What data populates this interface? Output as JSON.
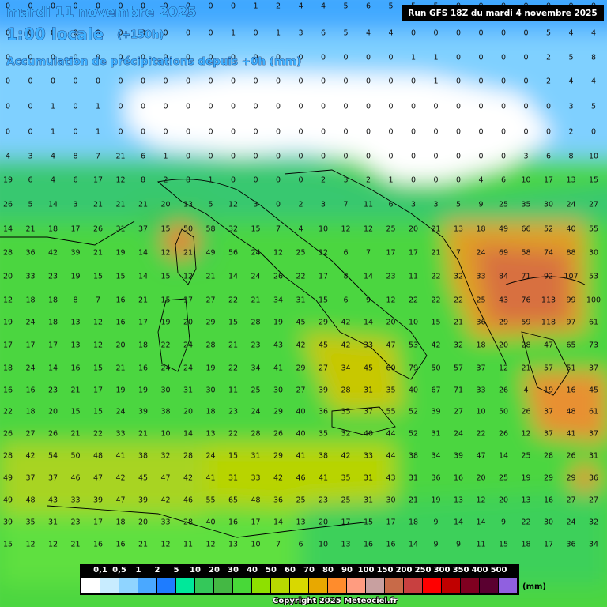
{
  "header": {
    "date": "mardi 11 novembre 2025",
    "time": "1:00 locale",
    "lead": "(+150h)",
    "subtitle": "Accumulation de précipitations depuis +0h (mm)",
    "run": "Run GFS 18Z du mardi 4 novembre 2025"
  },
  "grid": [
    [
      0,
      0,
      0,
      0,
      0,
      0,
      0,
      0,
      0,
      0,
      0,
      1,
      2,
      4,
      4,
      5,
      6,
      5,
      5,
      5,
      0,
      0,
      0,
      0,
      0,
      0,
      0
    ],
    [
      0,
      0,
      0,
      0,
      0,
      0,
      0,
      0,
      0,
      0,
      1,
      0,
      1,
      3,
      6,
      5,
      4,
      4,
      0,
      0,
      0,
      0,
      0,
      0,
      5,
      4,
      4
    ],
    [
      0,
      0,
      0,
      0,
      0,
      0,
      0,
      0,
      0,
      0,
      0,
      0,
      0,
      0,
      0,
      0,
      0,
      0,
      1,
      1,
      0,
      0,
      0,
      0,
      2,
      5,
      8
    ],
    [
      0,
      0,
      0,
      0,
      0,
      0,
      0,
      0,
      0,
      0,
      0,
      0,
      0,
      0,
      0,
      0,
      0,
      0,
      0,
      1,
      0,
      0,
      0,
      0,
      2,
      4,
      4
    ],
    [
      0,
      0,
      1,
      0,
      1,
      0,
      0,
      0,
      0,
      0,
      0,
      0,
      0,
      0,
      0,
      0,
      0,
      0,
      0,
      0,
      0,
      0,
      0,
      0,
      0,
      3,
      5
    ],
    [
      0,
      0,
      1,
      0,
      1,
      0,
      0,
      0,
      0,
      0,
      0,
      0,
      0,
      0,
      0,
      0,
      0,
      0,
      0,
      0,
      0,
      0,
      0,
      0,
      0,
      2,
      0
    ],
    [
      4,
      3,
      4,
      8,
      7,
      21,
      6,
      1,
      0,
      0,
      0,
      0,
      0,
      0,
      0,
      0,
      0,
      0,
      0,
      0,
      0,
      0,
      0,
      3,
      6,
      8,
      10
    ],
    [
      19,
      6,
      4,
      6,
      17,
      12,
      8,
      2,
      8,
      1,
      0,
      0,
      0,
      0,
      2,
      3,
      2,
      1,
      0,
      0,
      0,
      4,
      6,
      10,
      17,
      13,
      15
    ],
    [
      26,
      5,
      14,
      3,
      21,
      21,
      21,
      20,
      13,
      5,
      12,
      3,
      0,
      2,
      3,
      7,
      11,
      6,
      3,
      3,
      5,
      9,
      25,
      35,
      30,
      24,
      27
    ],
    [
      14,
      21,
      18,
      17,
      26,
      31,
      37,
      15,
      50,
      58,
      32,
      15,
      7,
      4,
      10,
      12,
      12,
      25,
      20,
      21,
      13,
      18,
      49,
      66,
      52,
      40,
      55
    ],
    [
      28,
      36,
      42,
      39,
      21,
      19,
      14,
      12,
      21,
      49,
      56,
      24,
      12,
      25,
      12,
      6,
      7,
      17,
      17,
      21,
      7,
      24,
      69,
      58,
      74,
      88,
      30
    ],
    [
      20,
      33,
      23,
      19,
      15,
      15,
      14,
      15,
      12,
      21,
      14,
      24,
      26,
      22,
      17,
      8,
      14,
      23,
      11,
      22,
      32,
      33,
      84,
      71,
      92,
      107,
      53
    ],
    [
      12,
      18,
      18,
      8,
      7,
      16,
      21,
      15,
      17,
      27,
      22,
      21,
      34,
      31,
      15,
      6,
      9,
      12,
      22,
      22,
      22,
      25,
      43,
      76,
      113,
      99,
      100
    ],
    [
      19,
      24,
      18,
      13,
      12,
      16,
      17,
      19,
      20,
      29,
      15,
      28,
      19,
      45,
      29,
      42,
      14,
      20,
      10,
      15,
      21,
      36,
      29,
      59,
      118,
      97,
      61
    ],
    [
      17,
      17,
      17,
      13,
      12,
      20,
      18,
      22,
      24,
      28,
      21,
      23,
      43,
      42,
      45,
      42,
      33,
      47,
      53,
      42,
      32,
      18,
      20,
      28,
      47,
      65,
      73
    ],
    [
      18,
      24,
      14,
      16,
      15,
      21,
      16,
      24,
      24,
      19,
      22,
      34,
      41,
      29,
      27,
      34,
      45,
      60,
      79,
      50,
      57,
      37,
      12,
      21,
      57,
      51,
      37
    ],
    [
      16,
      16,
      23,
      21,
      17,
      19,
      19,
      30,
      31,
      30,
      11,
      25,
      30,
      27,
      39,
      28,
      31,
      35,
      40,
      67,
      71,
      33,
      26,
      4,
      19,
      16,
      45
    ],
    [
      22,
      18,
      20,
      15,
      15,
      24,
      39,
      38,
      20,
      18,
      23,
      24,
      29,
      40,
      36,
      35,
      37,
      55,
      52,
      39,
      27,
      10,
      50,
      26,
      37,
      48,
      61
    ],
    [
      26,
      27,
      26,
      21,
      22,
      33,
      21,
      10,
      14,
      13,
      22,
      28,
      26,
      40,
      35,
      32,
      40,
      44,
      52,
      31,
      24,
      22,
      26,
      12,
      37,
      41,
      37
    ],
    [
      28,
      42,
      54,
      50,
      48,
      41,
      38,
      32,
      28,
      24,
      15,
      31,
      29,
      41,
      38,
      42,
      33,
      44,
      38,
      34,
      39,
      47,
      14,
      25,
      28,
      26,
      31
    ],
    [
      49,
      37,
      37,
      46,
      47,
      42,
      45,
      47,
      42,
      41,
      31,
      33,
      42,
      46,
      41,
      35,
      31,
      43,
      31,
      36,
      16,
      20,
      25,
      19,
      29,
      29,
      36
    ],
    [
      49,
      48,
      43,
      33,
      39,
      47,
      39,
      42,
      46,
      55,
      65,
      48,
      36,
      25,
      23,
      25,
      31,
      30,
      21,
      19,
      13,
      12,
      20,
      13,
      16,
      27,
      27
    ],
    [
      39,
      35,
      31,
      23,
      17,
      18,
      20,
      33,
      28,
      40,
      16,
      17,
      14,
      13,
      20,
      17,
      15,
      17,
      18,
      9,
      14,
      14,
      9,
      22,
      30,
      24,
      32
    ],
    [
      15,
      12,
      12,
      21,
      16,
      16,
      21,
      12,
      11,
      12,
      13,
      10,
      7,
      6,
      10,
      13,
      16,
      16,
      14,
      9,
      9,
      11,
      15,
      18,
      17,
      36,
      34
    ]
  ],
  "legend": {
    "labels": [
      "0,1",
      "0,5",
      "1",
      "2",
      "5",
      "10",
      "20",
      "30",
      "40",
      "50",
      "60",
      "70",
      "80",
      "90",
      "100",
      "150",
      "200",
      "250",
      "300",
      "350",
      "400",
      "500"
    ],
    "colors": [
      "#ffffff",
      "#c8ecff",
      "#8fd4ff",
      "#4aa8ff",
      "#1e7cff",
      "#00e89a",
      "#34c85a",
      "#44b844",
      "#48d838",
      "#8ee000",
      "#b8d800",
      "#d8d800",
      "#e8a800",
      "#ff8c2c",
      "#ff9c80",
      "#c8a0a0",
      "#c86a48",
      "#c84040",
      "#ff0000",
      "#c00000",
      "#800020",
      "#5a0030",
      "#9060e0"
    ],
    "unit": "(mm)"
  },
  "footer": "Copyright 2025 Meteociel.fr"
}
